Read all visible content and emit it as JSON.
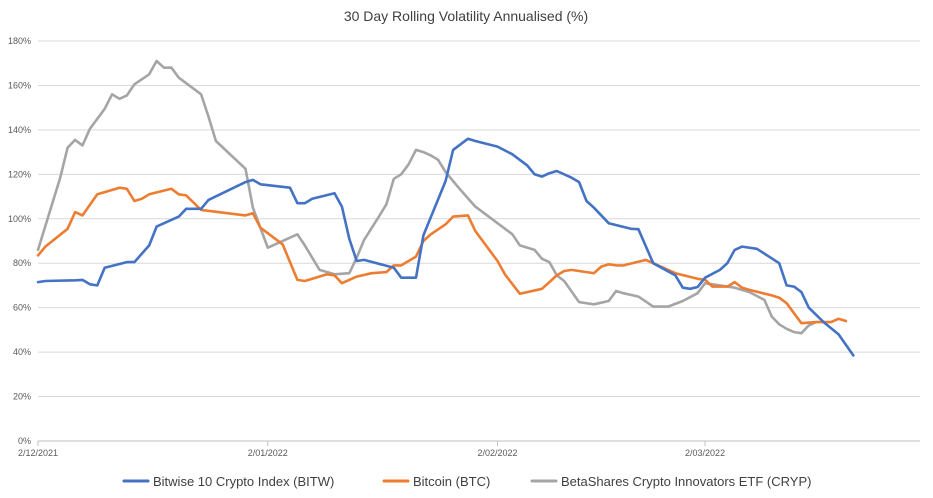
{
  "chart_data": {
    "type": "line",
    "title": "30 Day Rolling Volatility Annualised (%)",
    "xlabel": "",
    "ylabel": "",
    "x_range": [
      "2021-12-02",
      "2022-03-31"
    ],
    "ylim": [
      0,
      180
    ],
    "y_ticks": [
      0,
      20,
      40,
      60,
      80,
      100,
      120,
      140,
      160,
      180
    ],
    "y_tick_labels": [
      "0%",
      "20%",
      "40%",
      "60%",
      "80%",
      "100%",
      "120%",
      "140%",
      "160%",
      "180%"
    ],
    "x_ticks": [
      "2021-12-02",
      "2022-01-02",
      "2022-02-02",
      "2022-03-02"
    ],
    "x_tick_labels": [
      "2/12/2021",
      "2/01/2022",
      "2/02/2022",
      "2/03/2022"
    ],
    "grid": "horizontal",
    "legend": "bottom",
    "series": [
      {
        "name": "Bitwise 10 Crypto Index (BITW)",
        "color": "#4472c4",
        "points": [
          [
            "2021-12-02",
            71.5
          ],
          [
            "2021-12-03",
            72
          ],
          [
            "2021-12-07",
            72.3
          ],
          [
            "2021-12-08",
            72.5
          ],
          [
            "2021-12-09",
            70.5
          ],
          [
            "2021-12-10",
            70
          ],
          [
            "2021-12-11",
            78
          ],
          [
            "2021-12-14",
            80.5
          ],
          [
            "2021-12-15",
            80.5
          ],
          [
            "2021-12-17",
            88
          ],
          [
            "2021-12-18",
            96.5
          ],
          [
            "2021-12-21",
            101
          ],
          [
            "2021-12-22",
            104.5
          ],
          [
            "2021-12-24",
            104.5
          ],
          [
            "2021-12-25",
            108.5
          ],
          [
            "2021-12-30",
            116.5
          ],
          [
            "2021-12-31",
            117.5
          ],
          [
            "2022-01-01",
            115.5
          ],
          [
            "2022-01-05",
            114
          ],
          [
            "2022-01-06",
            107
          ],
          [
            "2022-01-07",
            107
          ],
          [
            "2022-01-08",
            109
          ],
          [
            "2022-01-11",
            111.5
          ],
          [
            "2022-01-12",
            105.5
          ],
          [
            "2022-01-13",
            91
          ],
          [
            "2022-01-14",
            81
          ],
          [
            "2022-01-15",
            81.5
          ],
          [
            "2022-01-19",
            78
          ],
          [
            "2022-01-20",
            73.5
          ],
          [
            "2022-01-22",
            73.5
          ],
          [
            "2022-01-23",
            92.5
          ],
          [
            "2022-01-26",
            117
          ],
          [
            "2022-01-27",
            131
          ],
          [
            "2022-01-29",
            136
          ],
          [
            "2022-01-30",
            135
          ],
          [
            "2022-02-02",
            132.5
          ],
          [
            "2022-02-04",
            129
          ],
          [
            "2022-02-06",
            124
          ],
          [
            "2022-02-07",
            120
          ],
          [
            "2022-02-08",
            119
          ],
          [
            "2022-02-09",
            120.5
          ],
          [
            "2022-02-10",
            121.5
          ],
          [
            "2022-02-12",
            118.5
          ],
          [
            "2022-02-13",
            116.5
          ],
          [
            "2022-02-14",
            108
          ],
          [
            "2022-02-15",
            105
          ],
          [
            "2022-02-17",
            98
          ],
          [
            "2022-02-20",
            95.5
          ],
          [
            "2022-02-21",
            95.3
          ],
          [
            "2022-02-23",
            80
          ],
          [
            "2022-02-26",
            74.5
          ],
          [
            "2022-02-27",
            69
          ],
          [
            "2022-02-28",
            68.5
          ],
          [
            "2022-03-01",
            69.3
          ],
          [
            "2022-03-02",
            73.5
          ],
          [
            "2022-03-04",
            77
          ],
          [
            "2022-03-05",
            80
          ],
          [
            "2022-03-06",
            86
          ],
          [
            "2022-03-07",
            87.5
          ],
          [
            "2022-03-09",
            86.5
          ],
          [
            "2022-03-12",
            80
          ],
          [
            "2022-03-13",
            70
          ],
          [
            "2022-03-14",
            69.5
          ],
          [
            "2022-03-15",
            67
          ],
          [
            "2022-03-16",
            60
          ],
          [
            "2022-03-18",
            53.5
          ],
          [
            "2022-03-20",
            48
          ],
          [
            "2022-03-22",
            38.5
          ]
        ]
      },
      {
        "name": "Bitcoin (BTC)",
        "color": "#ed7d31",
        "points": [
          [
            "2021-12-02",
            83.5
          ],
          [
            "2021-12-03",
            87.5
          ],
          [
            "2021-12-06",
            95.5
          ],
          [
            "2021-12-07",
            103
          ],
          [
            "2021-12-08",
            101.5
          ],
          [
            "2021-12-10",
            111
          ],
          [
            "2021-12-11",
            112
          ],
          [
            "2021-12-13",
            114
          ],
          [
            "2021-12-14",
            113.5
          ],
          [
            "2021-12-15",
            108
          ],
          [
            "2021-12-16",
            109
          ],
          [
            "2021-12-17",
            111
          ],
          [
            "2021-12-20",
            113.5
          ],
          [
            "2021-12-21",
            111
          ],
          [
            "2021-12-22",
            110.5
          ],
          [
            "2021-12-24",
            104
          ],
          [
            "2021-12-30",
            101.5
          ],
          [
            "2021-12-31",
            102.5
          ],
          [
            "2022-01-01",
            96
          ],
          [
            "2022-01-04",
            88.5
          ],
          [
            "2022-01-06",
            72.5
          ],
          [
            "2022-01-07",
            72
          ],
          [
            "2022-01-10",
            75
          ],
          [
            "2022-01-11",
            74.5
          ],
          [
            "2022-01-12",
            71
          ],
          [
            "2022-01-14",
            74
          ],
          [
            "2022-01-16",
            75.5
          ],
          [
            "2022-01-18",
            76
          ],
          [
            "2022-01-19",
            79
          ],
          [
            "2022-01-20",
            79
          ],
          [
            "2022-01-22",
            83
          ],
          [
            "2022-01-23",
            90
          ],
          [
            "2022-01-24",
            93
          ],
          [
            "2022-01-26",
            97.5
          ],
          [
            "2022-01-27",
            101
          ],
          [
            "2022-01-29",
            101.5
          ],
          [
            "2022-01-30",
            94.5
          ],
          [
            "2022-02-02",
            81
          ],
          [
            "2022-02-03",
            75
          ],
          [
            "2022-02-05",
            66.3
          ],
          [
            "2022-02-06",
            67
          ],
          [
            "2022-02-08",
            68.5
          ],
          [
            "2022-02-10",
            74.5
          ],
          [
            "2022-02-11",
            76.5
          ],
          [
            "2022-02-12",
            77
          ],
          [
            "2022-02-14",
            76
          ],
          [
            "2022-02-15",
            75.5
          ],
          [
            "2022-02-16",
            78.5
          ],
          [
            "2022-02-17",
            79.5
          ],
          [
            "2022-02-18",
            79
          ],
          [
            "2022-02-19",
            79
          ],
          [
            "2022-02-22",
            81.5
          ],
          [
            "2022-02-23",
            80
          ],
          [
            "2022-02-26",
            75.5
          ],
          [
            "2022-03-01",
            73
          ],
          [
            "2022-03-02",
            72.5
          ],
          [
            "2022-03-03",
            69.5
          ],
          [
            "2022-03-05",
            69.5
          ],
          [
            "2022-03-06",
            71.5
          ],
          [
            "2022-03-07",
            69
          ],
          [
            "2022-03-08",
            68
          ],
          [
            "2022-03-11",
            65.5
          ],
          [
            "2022-03-12",
            64.5
          ],
          [
            "2022-03-13",
            62
          ],
          [
            "2022-03-15",
            53
          ],
          [
            "2022-03-17",
            53.5
          ],
          [
            "2022-03-18",
            53.5
          ],
          [
            "2022-03-19",
            53.5
          ],
          [
            "2022-03-20",
            55
          ],
          [
            "2022-03-21",
            54
          ]
        ]
      },
      {
        "name": "BetaShares Crypto Innovators ETF (CRYP)",
        "color": "#a5a5a5",
        "points": [
          [
            "2021-12-02",
            86
          ],
          [
            "2021-12-05",
            118.5
          ],
          [
            "2021-12-06",
            132
          ],
          [
            "2021-12-07",
            135.5
          ],
          [
            "2021-12-08",
            133
          ],
          [
            "2021-12-09",
            140.5
          ],
          [
            "2021-12-11",
            149.5
          ],
          [
            "2021-12-12",
            156
          ],
          [
            "2021-12-13",
            154
          ],
          [
            "2021-12-14",
            155.5
          ],
          [
            "2021-12-15",
            160.5
          ],
          [
            "2021-12-17",
            165
          ],
          [
            "2021-12-18",
            171
          ],
          [
            "2021-12-19",
            168
          ],
          [
            "2021-12-20",
            168
          ],
          [
            "2021-12-21",
            163.5
          ],
          [
            "2021-12-24",
            156
          ],
          [
            "2021-12-25",
            146
          ],
          [
            "2021-12-26",
            135
          ],
          [
            "2021-12-30",
            122.5
          ],
          [
            "2021-12-31",
            105
          ],
          [
            "2022-01-02",
            87
          ],
          [
            "2022-01-06",
            93
          ],
          [
            "2022-01-07",
            88
          ],
          [
            "2022-01-09",
            77
          ],
          [
            "2022-01-11",
            75
          ],
          [
            "2022-01-13",
            75.5
          ],
          [
            "2022-01-14",
            82.5
          ],
          [
            "2022-01-15",
            90.5
          ],
          [
            "2022-01-17",
            101
          ],
          [
            "2022-01-18",
            106.5
          ],
          [
            "2022-01-19",
            118
          ],
          [
            "2022-01-20",
            120
          ],
          [
            "2022-01-21",
            124.5
          ],
          [
            "2022-01-22",
            131
          ],
          [
            "2022-01-23",
            130
          ],
          [
            "2022-01-24",
            128.5
          ],
          [
            "2022-01-25",
            126.5
          ],
          [
            "2022-01-26",
            121
          ],
          [
            "2022-01-28",
            113
          ],
          [
            "2022-01-30",
            105.5
          ],
          [
            "2022-02-04",
            93
          ],
          [
            "2022-02-05",
            88
          ],
          [
            "2022-02-07",
            86
          ],
          [
            "2022-02-08",
            82
          ],
          [
            "2022-02-09",
            80.5
          ],
          [
            "2022-02-10",
            74.5
          ],
          [
            "2022-02-11",
            72
          ],
          [
            "2022-02-13",
            62.5
          ],
          [
            "2022-02-15",
            61.5
          ],
          [
            "2022-02-17",
            63
          ],
          [
            "2022-02-18",
            67.5
          ],
          [
            "2022-02-19",
            66.5
          ],
          [
            "2022-02-21",
            65
          ],
          [
            "2022-02-23",
            60.5
          ],
          [
            "2022-02-25",
            60.5
          ],
          [
            "2022-02-27",
            63
          ],
          [
            "2022-03-01",
            66.5
          ],
          [
            "2022-03-02",
            71
          ],
          [
            "2022-03-06",
            69
          ],
          [
            "2022-03-08",
            67
          ],
          [
            "2022-03-10",
            63.5
          ],
          [
            "2022-03-11",
            56
          ],
          [
            "2022-03-12",
            52.5
          ],
          [
            "2022-03-13",
            50.5
          ],
          [
            "2022-03-14",
            49
          ],
          [
            "2022-03-15",
            48.5
          ],
          [
            "2022-03-16",
            52
          ],
          [
            "2022-03-17",
            53.5
          ]
        ]
      }
    ]
  }
}
